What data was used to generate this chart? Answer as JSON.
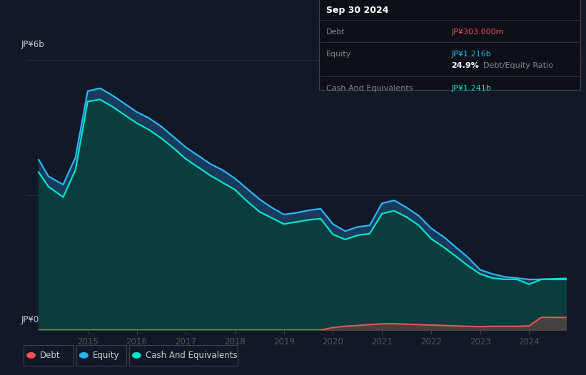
{
  "bg_color": "#111827",
  "plot_bg_color": "#111827",
  "ylabel_top": "JP¥6b",
  "ylabel_bottom": "JP¥0",
  "x_ticks": [
    2015,
    2016,
    2017,
    2018,
    2019,
    2020,
    2021,
    2022,
    2023,
    2024
  ],
  "equity_color": "#29b6f6",
  "cash_color": "#00e5cc",
  "debt_color": "#ef5350",
  "fill_equity_color": "#1a3a5c",
  "fill_cash_color": "#0a3d3d",
  "grid_color": "#263040",
  "years": [
    2014.0,
    2014.2,
    2014.5,
    2014.75,
    2015.0,
    2015.25,
    2015.5,
    2015.75,
    2016.0,
    2016.25,
    2016.5,
    2016.75,
    2017.0,
    2017.25,
    2017.5,
    2017.75,
    2018.0,
    2018.25,
    2018.5,
    2018.75,
    2019.0,
    2019.25,
    2019.5,
    2019.75,
    2020.0,
    2020.25,
    2020.5,
    2020.75,
    2021.0,
    2021.25,
    2021.5,
    2021.75,
    2022.0,
    2022.25,
    2022.5,
    2022.75,
    2023.0,
    2023.25,
    2023.5,
    2023.75,
    2024.0,
    2024.25,
    2024.75
  ],
  "equity": [
    4.1,
    3.7,
    3.5,
    4.15,
    5.75,
    5.82,
    5.65,
    5.45,
    5.25,
    5.1,
    4.9,
    4.65,
    4.4,
    4.2,
    4.0,
    3.85,
    3.65,
    3.4,
    3.15,
    2.95,
    2.78,
    2.82,
    2.88,
    2.92,
    2.55,
    2.38,
    2.48,
    2.52,
    3.05,
    3.12,
    2.95,
    2.75,
    2.45,
    2.25,
    2.0,
    1.75,
    1.45,
    1.35,
    1.28,
    1.25,
    1.216,
    1.22,
    1.216
  ],
  "cash": [
    3.8,
    3.45,
    3.2,
    3.85,
    5.5,
    5.55,
    5.38,
    5.18,
    4.98,
    4.82,
    4.62,
    4.38,
    4.12,
    3.92,
    3.72,
    3.55,
    3.38,
    3.1,
    2.85,
    2.7,
    2.55,
    2.6,
    2.65,
    2.68,
    2.3,
    2.18,
    2.28,
    2.32,
    2.8,
    2.87,
    2.72,
    2.52,
    2.2,
    2.0,
    1.78,
    1.55,
    1.35,
    1.25,
    1.22,
    1.22,
    1.1,
    1.22,
    1.241
  ],
  "debt": [
    0.0,
    0.0,
    0.0,
    0.0,
    0.0,
    0.0,
    0.0,
    0.0,
    0.0,
    0.0,
    0.0,
    0.0,
    0.0,
    0.0,
    0.0,
    0.0,
    0.0,
    0.0,
    0.0,
    0.0,
    0.0,
    0.0,
    0.0,
    0.0,
    0.06,
    0.09,
    0.11,
    0.13,
    0.15,
    0.15,
    0.14,
    0.13,
    0.12,
    0.11,
    0.1,
    0.09,
    0.08,
    0.09,
    0.09,
    0.09,
    0.1,
    0.305,
    0.303
  ],
  "ylim": [
    0,
    6.5
  ],
  "xlim": [
    2013.75,
    2025.1
  ],
  "info_box": {
    "date": "Sep 30 2024",
    "debt_label": "Debt",
    "debt_value": "JP¥303.000m",
    "equity_label": "Equity",
    "equity_value": "JP¥1.216b",
    "ratio": "24.9%",
    "ratio_label": "Debt/Equity Ratio",
    "cash_label": "Cash And Equivalents",
    "cash_value": "JP¥1.241b"
  },
  "legend_labels": [
    "Debt",
    "Equity",
    "Cash And Equivalents"
  ]
}
